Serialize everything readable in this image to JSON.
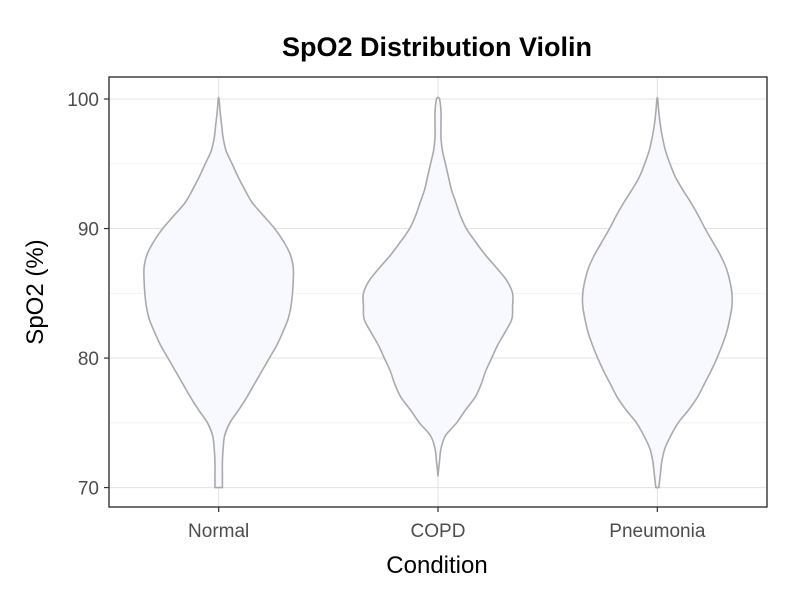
{
  "chart_data": {
    "type": "violin",
    "title": "SpO2 Distribution Violin",
    "xlabel": "Condition",
    "ylabel": "SpO2 (%)",
    "ylim": [
      68.5,
      101.7
    ],
    "yticks": [
      70,
      80,
      90,
      100
    ],
    "ytick_labels": [
      "70",
      "80",
      "90",
      "100"
    ],
    "categories": [
      "Normal",
      "COPD",
      "Pneumonia"
    ],
    "grid": true,
    "legend": "none",
    "fill_color": "#f8f9ff",
    "outline_color": "#aaaaaa",
    "violins": [
      {
        "category": "Normal",
        "profile": [
          [
            70,
            0.05
          ],
          [
            71,
            0.05
          ],
          [
            72,
            0.05
          ],
          [
            73,
            0.06
          ],
          [
            74,
            0.08
          ],
          [
            75,
            0.15
          ],
          [
            76,
            0.27
          ],
          [
            77,
            0.38
          ],
          [
            78,
            0.48
          ],
          [
            79,
            0.58
          ],
          [
            80,
            0.68
          ],
          [
            81,
            0.78
          ],
          [
            82,
            0.86
          ],
          [
            83,
            0.93
          ],
          [
            84,
            0.97
          ],
          [
            85,
            0.99
          ],
          [
            86,
            1.0
          ],
          [
            87,
            1.0
          ],
          [
            88,
            0.96
          ],
          [
            89,
            0.87
          ],
          [
            90,
            0.75
          ],
          [
            91,
            0.6
          ],
          [
            92,
            0.45
          ],
          [
            93,
            0.35
          ],
          [
            94,
            0.26
          ],
          [
            95,
            0.18
          ],
          [
            96,
            0.1
          ],
          [
            97,
            0.06
          ],
          [
            98,
            0.04
          ],
          [
            99,
            0.02
          ],
          [
            100,
            0.005
          ]
        ]
      },
      {
        "category": "COPD",
        "profile": [
          [
            70.9,
            0.0
          ],
          [
            71.5,
            0.01
          ],
          [
            72,
            0.02
          ],
          [
            73,
            0.04
          ],
          [
            74,
            0.1
          ],
          [
            75,
            0.25
          ],
          [
            76,
            0.37
          ],
          [
            77,
            0.5
          ],
          [
            78,
            0.58
          ],
          [
            79,
            0.64
          ],
          [
            80,
            0.72
          ],
          [
            81,
            0.8
          ],
          [
            82,
            0.9
          ],
          [
            83,
            0.99
          ],
          [
            84,
            1.0
          ],
          [
            85,
            1.0
          ],
          [
            86,
            0.92
          ],
          [
            87,
            0.78
          ],
          [
            88,
            0.63
          ],
          [
            89,
            0.5
          ],
          [
            90,
            0.38
          ],
          [
            91,
            0.3
          ],
          [
            92,
            0.24
          ],
          [
            93,
            0.18
          ],
          [
            94,
            0.14
          ],
          [
            95,
            0.1
          ],
          [
            96,
            0.06
          ],
          [
            97,
            0.04
          ],
          [
            98,
            0.04
          ],
          [
            99,
            0.04
          ],
          [
            100,
            0.02
          ]
        ]
      },
      {
        "category": "Pneumonia",
        "profile": [
          [
            70,
            0.02
          ],
          [
            71,
            0.04
          ],
          [
            72,
            0.06
          ],
          [
            73,
            0.1
          ],
          [
            74,
            0.18
          ],
          [
            75,
            0.28
          ],
          [
            76,
            0.42
          ],
          [
            77,
            0.54
          ],
          [
            78,
            0.63
          ],
          [
            79,
            0.72
          ],
          [
            80,
            0.8
          ],
          [
            81,
            0.87
          ],
          [
            82,
            0.93
          ],
          [
            83,
            0.97
          ],
          [
            84,
            1.0
          ],
          [
            85,
            1.0
          ],
          [
            86,
            0.97
          ],
          [
            87,
            0.92
          ],
          [
            88,
            0.84
          ],
          [
            89,
            0.74
          ],
          [
            90,
            0.64
          ],
          [
            91,
            0.55
          ],
          [
            92,
            0.45
          ],
          [
            93,
            0.34
          ],
          [
            94,
            0.24
          ],
          [
            95,
            0.17
          ],
          [
            96,
            0.11
          ],
          [
            97,
            0.07
          ],
          [
            98,
            0.04
          ],
          [
            99,
            0.02
          ],
          [
            100,
            0.005
          ]
        ]
      }
    ]
  }
}
